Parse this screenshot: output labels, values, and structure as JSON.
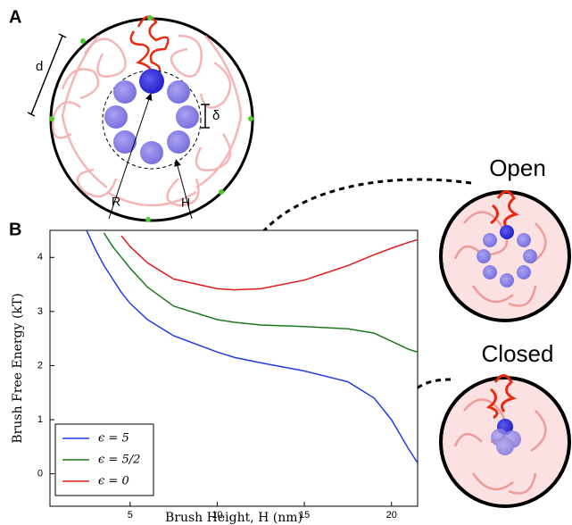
{
  "panel_a": {
    "label": "A",
    "symbols": [
      "d",
      "δ",
      "R",
      "H"
    ]
  },
  "panel_b_label": "B",
  "insets": [
    "Open",
    "Closed"
  ],
  "chart_data": {
    "type": "line",
    "x_label": "Brush Height, H (nm)",
    "y_label": "Brush Free Energy (kT)",
    "x": [
      2.5,
      3,
      3.5,
      4,
      4.5,
      5,
      6,
      7.5,
      10,
      11,
      12.5,
      15,
      17.5,
      19,
      20,
      21,
      21.5
    ],
    "series": [
      {
        "name": "ϵ = 5",
        "color": "#1f3de0",
        "values": [
          4.5,
          4.15,
          3.85,
          3.6,
          3.35,
          3.15,
          2.85,
          2.55,
          2.25,
          2.15,
          2.05,
          1.9,
          1.7,
          1.4,
          1.0,
          0.45,
          0.2
        ]
      },
      {
        "name": "ϵ = 5/2",
        "color": "#1a7a1a",
        "values": [
          null,
          null,
          4.45,
          4.2,
          4.0,
          3.8,
          3.45,
          3.1,
          2.85,
          2.8,
          2.75,
          2.72,
          2.68,
          2.6,
          2.45,
          2.3,
          2.25
        ]
      },
      {
        "name": "ϵ = 0",
        "color": "#e01a1a",
        "values": [
          null,
          null,
          null,
          null,
          4.4,
          4.2,
          3.9,
          3.6,
          3.42,
          3.4,
          3.42,
          3.58,
          3.85,
          4.05,
          4.17,
          4.28,
          4.33
        ]
      }
    ],
    "xlim": [
      0.4,
      21.5
    ],
    "ylim": [
      -0.6,
      4.5
    ],
    "xticks": [
      5,
      10,
      15,
      20
    ],
    "yticks": [
      0,
      1,
      2,
      3,
      4
    ],
    "legend": "lower left"
  }
}
